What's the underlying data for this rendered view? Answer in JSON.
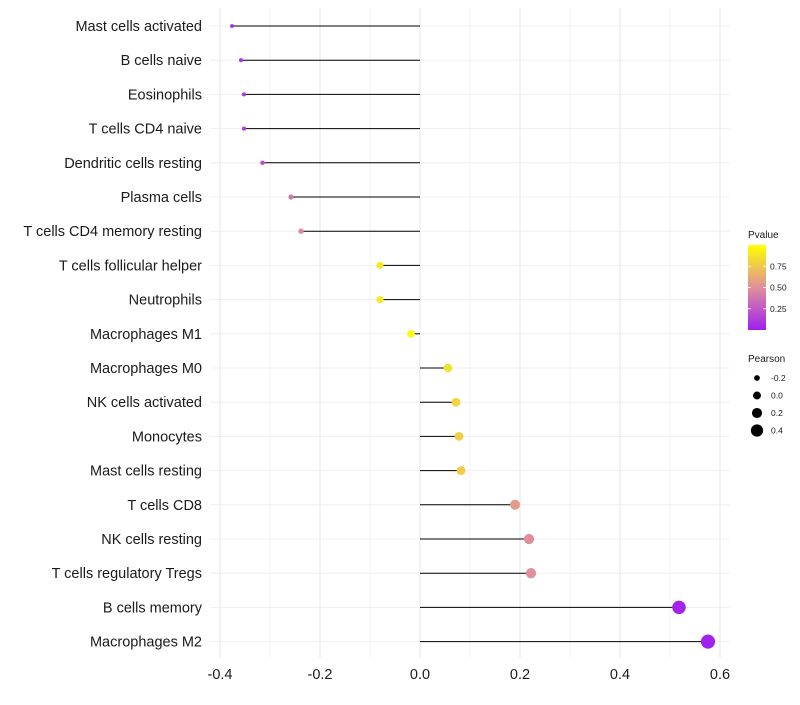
{
  "chart_data": {
    "type": "lollipop",
    "categories": [
      "Mast cells activated",
      "B cells naive",
      "Eosinophils",
      "T cells CD4 naive",
      "Dendritic cells resting",
      "Plasma cells",
      "T cells CD4 memory resting",
      "T cells follicular helper",
      "Neutrophils",
      "Macrophages M1",
      "Macrophages M0",
      "NK cells activated",
      "Monocytes",
      "Mast cells resting",
      "T cells CD8",
      "NK cells resting",
      "T cells regulatory  Tregs ",
      "B cells memory",
      "Macrophages M2"
    ],
    "values": [
      -0.376,
      -0.358,
      -0.352,
      -0.352,
      -0.315,
      -0.258,
      -0.238,
      -0.08,
      -0.08,
      -0.018,
      0.056,
      0.072,
      0.078,
      0.082,
      0.19,
      0.218,
      0.222,
      0.518,
      0.576
    ],
    "pvalues": [
      0.05,
      0.1,
      0.12,
      0.12,
      0.22,
      0.4,
      0.47,
      0.9,
      0.9,
      0.98,
      0.85,
      0.8,
      0.78,
      0.77,
      0.55,
      0.5,
      0.5,
      0.02,
      0.01
    ],
    "xlim": [
      -0.42,
      0.62
    ],
    "xticks": [
      -0.4,
      -0.2,
      0.0,
      0.2,
      0.4,
      0.6
    ],
    "xtick_labels": [
      "-0.4",
      "-0.2",
      "0.0",
      "0.2",
      "0.4",
      "0.6"
    ],
    "xlabel": "",
    "ylabel": "",
    "grid": true,
    "legend_color": {
      "title": "Pvalue",
      "range": [
        0,
        1
      ],
      "ticks": [
        0.25,
        0.5,
        0.75
      ],
      "tick_labels": [
        "0.25",
        "0.50",
        "0.75"
      ],
      "low_color": "#a020f0",
      "mid_color": "#e0909a",
      "high_color": "#ffff00",
      "placement": "right"
    },
    "legend_size": {
      "title": "Pearson",
      "values": [
        -0.2,
        0.0,
        0.2,
        0.4
      ],
      "labels": [
        "-0.2",
        "0.0",
        "0.2",
        "0.4"
      ],
      "placement": "right"
    }
  }
}
